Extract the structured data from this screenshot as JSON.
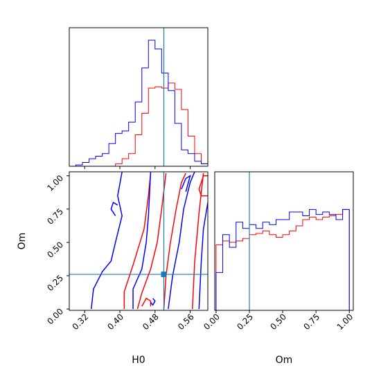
{
  "colors": {
    "series_red": "#ff0000",
    "series_blue": "#0000ff",
    "truth": "#1f77b4",
    "axes": "#000000"
  },
  "chart_data": [
    {
      "type": "histogram",
      "panel": "H0 marginal",
      "xlabel": "",
      "ylabel": "",
      "xlim": [
        0.285,
        0.6
      ],
      "ylim": [
        0,
        1
      ],
      "bin_edges": [
        0.285,
        0.3,
        0.315,
        0.33,
        0.345,
        0.36,
        0.375,
        0.39,
        0.405,
        0.42,
        0.435,
        0.45,
        0.465,
        0.48,
        0.495,
        0.51,
        0.525,
        0.54,
        0.555,
        0.57,
        0.585,
        0.6
      ],
      "series": [
        {
          "color": "red",
          "values": [
            0,
            0,
            0,
            0,
            0,
            0,
            0,
            0.02,
            0.06,
            0.1,
            0.25,
            0.42,
            0.62,
            0.63,
            0.62,
            0.66,
            0.61,
            0.45,
            0.24,
            0.1,
            0.02
          ]
        },
        {
          "color": "blue",
          "values": [
            0,
            0.01,
            0.03,
            0.06,
            0.08,
            0.1,
            0.18,
            0.26,
            0.28,
            0.35,
            0.51,
            0.78,
            1.0,
            0.93,
            0.74,
            0.6,
            0.34,
            0.13,
            0.1,
            0.04,
            0.02
          ]
        }
      ],
      "truth_x": 0.5
    },
    {
      "type": "contour",
      "panel": "H0 vs Om joint",
      "xlabel": "H0",
      "ylabel": "Om",
      "xlim": [
        0.285,
        0.6
      ],
      "ylim": [
        -0.01,
        1.03
      ],
      "xticks": [
        "0.32",
        "0.40",
        "0.48",
        "0.56"
      ],
      "yticks": [
        "0.00",
        "0.25",
        "0.50",
        "0.75",
        "1.00"
      ],
      "series": [
        {
          "color": "red",
          "contours": [
            [
              [
                0.5,
                0.0
              ],
              [
                0.505,
                0.25
              ],
              [
                0.515,
                0.5
              ],
              [
                0.528,
                0.75
              ],
              [
                0.54,
                0.95
              ],
              [
                0.55,
                1.02
              ]
            ],
            [
              [
                0.565,
                0.0
              ],
              [
                0.57,
                0.35
              ],
              [
                0.58,
                0.72
              ],
              [
                0.59,
                1.02
              ]
            ],
            [
              [
                0.41,
                0.0
              ],
              [
                0.41,
                0.13
              ],
              [
                0.43,
                0.33
              ],
              [
                0.455,
                0.6
              ],
              [
                0.465,
                0.85
              ],
              [
                0.47,
                1.02
              ]
            ],
            [
              [
                0.44,
                0.0
              ],
              [
                0.45,
                0.12
              ],
              [
                0.47,
                0.3
              ],
              [
                0.485,
                0.5
              ],
              [
                0.495,
                0.75
              ],
              [
                0.505,
                1.02
              ]
            ],
            [
              [
                0.6,
                0.85
              ],
              [
                0.585,
                0.85
              ],
              [
                0.58,
                0.9
              ],
              [
                0.59,
                1.0
              ],
              [
                0.6,
                1.0
              ]
            ],
            [
              [
                0.45,
                0.02
              ],
              [
                0.455,
                0.05
              ],
              [
                0.46,
                0.08
              ],
              [
                0.47,
                0.06
              ],
              [
                0.47,
                0.02
              ]
            ]
          ]
        },
        {
          "color": "blue",
          "contours": [
            [
              [
                0.335,
                0.0
              ],
              [
                0.34,
                0.15
              ],
              [
                0.36,
                0.28
              ],
              [
                0.38,
                0.36
              ],
              [
                0.39,
                0.5
              ],
              [
                0.405,
                0.7
              ],
              [
                0.395,
                0.85
              ],
              [
                0.405,
                1.03
              ]
            ],
            [
              [
                0.43,
                0.0
              ],
              [
                0.43,
                0.15
              ],
              [
                0.45,
                0.3
              ],
              [
                0.46,
                0.5
              ],
              [
                0.465,
                0.7
              ],
              [
                0.47,
                1.03
              ]
            ],
            [
              [
                0.51,
                0.0
              ],
              [
                0.52,
                0.25
              ],
              [
                0.535,
                0.5
              ],
              [
                0.545,
                0.75
              ],
              [
                0.56,
                0.95
              ],
              [
                0.57,
                1.03
              ]
            ],
            [
              [
                0.58,
                0.0
              ],
              [
                0.585,
                0.35
              ],
              [
                0.59,
                0.6
              ],
              [
                0.6,
                0.8
              ]
            ],
            [
              [
                0.39,
                0.7
              ],
              [
                0.38,
                0.75
              ],
              [
                0.385,
                0.8
              ],
              [
                0.395,
                0.78
              ]
            ],
            [
              [
                0.47,
                0.05
              ],
              [
                0.475,
                0.03
              ],
              [
                0.48,
                0.06
              ],
              [
                0.475,
                0.08
              ]
            ],
            [
              [
                0.54,
                0.9
              ],
              [
                0.55,
                0.98
              ],
              [
                0.56,
                1.0
              ],
              [
                0.55,
                0.88
              ]
            ]
          ]
        }
      ],
      "truth_x": 0.5,
      "truth_y": 0.26
    },
    {
      "type": "histogram",
      "panel": "Om marginal",
      "xlabel": "Om",
      "ylabel": "",
      "xlim": [
        -0.01,
        1.03
      ],
      "ylim": [
        0,
        1
      ],
      "xticks": [
        "0.00",
        "0.25",
        "0.50",
        "0.75",
        "1.00"
      ],
      "bin_edges": [
        0.0,
        0.05,
        0.1,
        0.15,
        0.2,
        0.25,
        0.3,
        0.35,
        0.4,
        0.45,
        0.5,
        0.55,
        0.6,
        0.65,
        0.7,
        0.75,
        0.8,
        0.85,
        0.9,
        0.95,
        1.0
      ],
      "series": [
        {
          "color": "red",
          "values": [
            0.52,
            0.55,
            0.54,
            0.55,
            0.57,
            0.6,
            0.61,
            0.63,
            0.6,
            0.58,
            0.6,
            0.63,
            0.67,
            0.72,
            0.74,
            0.72,
            0.74,
            0.75,
            0.76,
            0.8
          ]
        },
        {
          "color": "blue",
          "values": [
            0.3,
            0.6,
            0.5,
            0.7,
            0.65,
            0.68,
            0.65,
            0.7,
            0.68,
            0.72,
            0.72,
            0.78,
            0.78,
            0.75,
            0.8,
            0.76,
            0.78,
            0.76,
            0.72,
            0.8
          ]
        }
      ],
      "truth_x": 0.25
    }
  ]
}
